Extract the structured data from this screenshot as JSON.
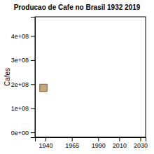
{
  "chart_data": {
    "type": "scatter",
    "title": "Producao de Cafe no Brasil 1932 2019",
    "ylabel": "Cafes",
    "x": [
      1938
    ],
    "values": [
      185000000
    ],
    "color": "#C8A87A",
    "marker": "square",
    "xlim": [
      1930,
      2035
    ],
    "xticks": [
      1940,
      1965,
      1990,
      2010,
      2030
    ],
    "ylim": [
      -20000000,
      480000000
    ],
    "yticks": [
      {
        "value": 0,
        "label": "0e+00"
      },
      {
        "value": 100000000,
        "label": "1e+08"
      },
      {
        "value": 200000000,
        "label": "2e+08"
      },
      {
        "value": 300000000,
        "label": "3e+08"
      },
      {
        "value": 400000000,
        "label": "4e+08"
      }
    ],
    "grid": false
  }
}
